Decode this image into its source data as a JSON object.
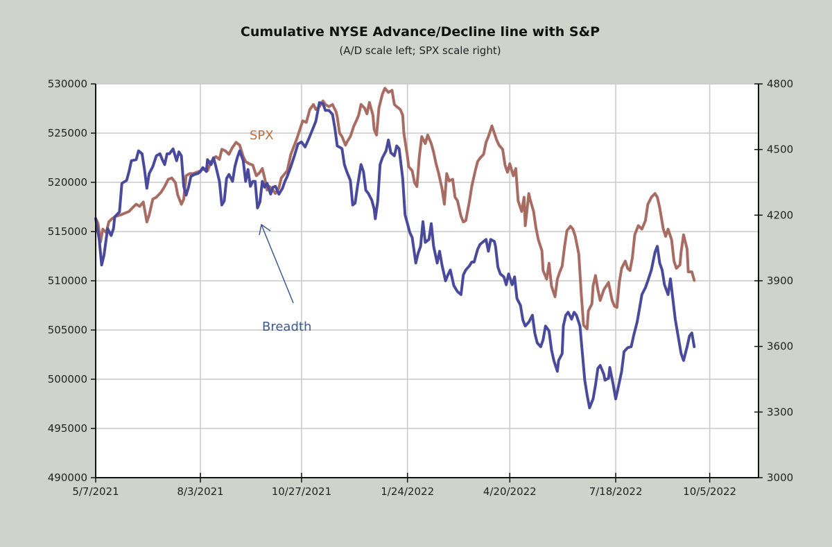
{
  "chart_data": {
    "type": "line",
    "title": "Cumulative NYSE Advance/Decline line with S&P",
    "subtitle": "(A/D scale left; SPX scale right)",
    "x_unit": "days since 5/7/2021",
    "x_start_date": "5/7/2021",
    "xlim": [
      0,
      557
    ],
    "x_ticks": [
      {
        "day": 0,
        "label": "5/7/2021"
      },
      {
        "day": 88,
        "label": "8/3/2021"
      },
      {
        "day": 173,
        "label": "10/27/2021"
      },
      {
        "day": 262,
        "label": "1/24/2022"
      },
      {
        "day": 348,
        "label": "4/20/2022"
      },
      {
        "day": 437,
        "label": "7/18/2022"
      },
      {
        "day": 516,
        "label": "10/5/2022"
      }
    ],
    "y_left": {
      "ylim": [
        490000,
        530000
      ],
      "ticks": [
        "530000",
        "525000",
        "520000",
        "515000",
        "510000",
        "505000",
        "500000",
        "495000",
        "490000"
      ],
      "tick_values": [
        530000,
        525000,
        520000,
        515000,
        510000,
        505000,
        500000,
        495000,
        490000
      ]
    },
    "y_right": {
      "ylim": [
        3000,
        4800
      ],
      "ticks": [
        "4800",
        "4500",
        "4200",
        "3900",
        "3600",
        "3300",
        "3000"
      ],
      "tick_values": [
        4800,
        4500,
        4200,
        3900,
        3600,
        3300,
        3000
      ]
    },
    "grid": true,
    "series": [
      {
        "name": "Breadth",
        "axis": "left",
        "color": "#4a4a9c",
        "x": [
          0,
          3,
          5,
          7,
          10,
          13,
          15,
          16,
          20,
          22,
          26,
          28,
          30,
          34,
          36,
          39,
          41,
          43,
          45,
          48,
          51,
          54,
          56,
          58,
          60,
          62,
          65,
          68,
          70,
          72,
          74,
          76,
          78,
          80,
          83,
          86,
          88,
          90,
          93,
          94,
          97,
          99,
          101,
          104,
          106,
          108,
          110,
          112,
          115,
          117,
          119,
          121,
          124,
          126,
          128,
          130,
          132,
          134,
          136,
          138,
          140,
          142,
          144,
          147,
          149,
          151,
          154,
          157,
          159,
          161,
          164,
          167,
          170,
          173,
          176,
          179,
          182,
          185,
          188,
          191,
          193,
          196,
          199,
          201,
          203,
          206,
          207,
          209,
          211,
          214,
          216,
          218,
          220,
          223,
          225,
          227,
          229,
          232,
          234,
          235,
          237,
          239,
          241,
          244,
          246,
          248,
          251,
          253,
          255,
          258,
          260,
          262,
          264,
          266,
          269,
          271,
          273,
          275,
          277,
          280,
          282,
          284,
          287,
          289,
          291,
          294,
          296,
          298,
          301,
          304,
          307,
          309,
          311,
          314,
          316,
          318,
          321,
          323,
          325,
          328,
          330,
          332,
          335,
          336,
          338,
          340,
          343,
          345,
          347,
          350,
          352,
          354,
          357,
          359,
          361,
          364,
          367,
          369,
          371,
          374,
          376,
          378,
          381,
          383,
          385,
          388,
          389,
          392,
          393,
          395,
          397,
          400,
          402,
          404,
          407,
          409,
          411,
          413,
          415,
          418,
          420,
          422,
          424,
          427,
          428,
          431,
          432,
          435,
          437,
          439,
          442,
          444,
          447,
          450,
          452,
          455,
          457,
          459,
          462,
          464,
          467,
          470,
          472,
          474,
          476,
          478,
          481,
          483,
          485,
          487,
          490,
          492,
          494,
          497,
          499,
          501,
          503
        ],
        "y": [
          516300,
          514200,
          511600,
          512600,
          515300,
          514600,
          515300,
          516500,
          517000,
          519900,
          520200,
          521100,
          522200,
          522300,
          523200,
          522900,
          521300,
          519400,
          520900,
          521600,
          522700,
          522900,
          522300,
          521800,
          522900,
          522900,
          523400,
          522200,
          523100,
          522700,
          519600,
          518700,
          519500,
          520600,
          520800,
          520900,
          521100,
          521500,
          521100,
          522300,
          521800,
          522500,
          521600,
          520100,
          517700,
          518100,
          520400,
          520800,
          520100,
          521600,
          522500,
          523200,
          522200,
          520100,
          521300,
          519600,
          520100,
          520100,
          517400,
          518000,
          520100,
          519500,
          519900,
          518800,
          519500,
          519600,
          518800,
          519400,
          520100,
          520600,
          521600,
          522700,
          523900,
          524100,
          523600,
          524400,
          525300,
          526200,
          528100,
          528000,
          527300,
          527300,
          526900,
          525500,
          523700,
          523500,
          523400,
          521800,
          521100,
          520200,
          517700,
          517900,
          519600,
          521800,
          521100,
          519200,
          518900,
          518200,
          517300,
          516300,
          518100,
          521800,
          522500,
          523200,
          524300,
          523000,
          522700,
          523700,
          523400,
          520400,
          516700,
          515800,
          514900,
          514400,
          511800,
          512800,
          513500,
          516000,
          513900,
          514200,
          515800,
          513500,
          511800,
          513000,
          511600,
          510000,
          510600,
          511100,
          509500,
          508900,
          508600,
          510600,
          511100,
          511500,
          511900,
          511900,
          513200,
          513700,
          513900,
          514200,
          513000,
          514200,
          514000,
          513500,
          511400,
          510700,
          510400,
          509600,
          510700,
          509600,
          510400,
          508200,
          507500,
          506000,
          505400,
          505800,
          506500,
          504700,
          503700,
          503300,
          504000,
          505400,
          504900,
          503000,
          501900,
          500800,
          501900,
          502600,
          505400,
          506500,
          506800,
          506100,
          506800,
          506500,
          505400,
          502600,
          499900,
          498400,
          497100,
          498000,
          499400,
          501100,
          501400,
          500500,
          499900,
          500100,
          501200,
          499400,
          498000,
          499100,
          500800,
          502800,
          503200,
          503300,
          504400,
          505800,
          507200,
          508600,
          509300,
          510000,
          511100,
          512900,
          513500,
          511800,
          511100,
          509600,
          508600,
          510200,
          508200,
          506100,
          504000,
          502600,
          501900,
          503300,
          504400,
          504700,
          503300
        ]
      },
      {
        "name": "SPX",
        "axis": "right",
        "color": "#a86c62",
        "x": [
          0,
          2,
          4,
          6,
          9,
          11,
          14,
          17,
          21,
          24,
          28,
          31,
          34,
          37,
          40,
          43,
          45,
          48,
          51,
          55,
          58,
          61,
          64,
          67,
          69,
          72,
          74,
          76,
          79,
          82,
          85,
          88,
          91,
          94,
          97,
          101,
          104,
          106,
          109,
          112,
          115,
          118,
          121,
          124,
          126,
          129,
          132,
          135,
          138,
          140,
          142,
          144,
          146,
          149,
          151,
          154,
          156,
          159,
          161,
          164,
          167,
          169,
          172,
          174,
          177,
          180,
          183,
          185,
          188,
          191,
          193,
          196,
          199,
          202,
          203,
          205,
          207,
          210,
          211,
          214,
          217,
          219,
          221,
          223,
          226,
          228,
          230,
          233,
          234,
          236,
          238,
          241,
          243,
          246,
          249,
          251,
          253,
          256,
          258,
          259,
          262,
          263,
          266,
          268,
          270,
          272,
          274,
          277,
          279,
          282,
          284,
          286,
          288,
          291,
          293,
          295,
          297,
          300,
          302,
          304,
          307,
          309,
          311,
          314,
          316,
          319,
          321,
          323,
          326,
          328,
          330,
          333,
          335,
          337,
          339,
          342,
          344,
          346,
          348,
          351,
          353,
          355,
          358,
          360,
          361,
          364,
          365,
          368,
          370,
          372,
          375,
          376,
          379,
          381,
          383,
          386,
          388,
          390,
          392,
          394,
          396,
          399,
          401,
          403,
          406,
          408,
          410,
          413,
          414,
          417,
          418,
          420,
          422,
          424,
          427,
          429,
          431,
          434,
          436,
          438,
          440,
          442,
          445,
          447,
          449,
          451,
          453,
          456,
          459,
          462,
          464,
          467,
          470,
          472,
          474,
          477,
          479,
          481,
          484,
          486,
          488,
          491,
          492,
          494,
          497,
          498,
          501,
          503
        ],
        "y": [
          4185,
          4162,
          4077,
          4136,
          4120,
          4169,
          4185,
          4195,
          4201,
          4208,
          4217,
          4234,
          4250,
          4240,
          4260,
          4169,
          4201,
          4273,
          4282,
          4305,
          4331,
          4364,
          4370,
          4348,
          4292,
          4250,
          4273,
          4380,
          4390,
          4390,
          4396,
          4403,
          4413,
          4403,
          4445,
          4468,
          4455,
          4501,
          4494,
          4478,
          4510,
          4533,
          4520,
          4468,
          4445,
          4435,
          4429,
          4380,
          4396,
          4413,
          4370,
          4315,
          4331,
          4315,
          4299,
          4325,
          4370,
          4390,
          4403,
          4478,
          4520,
          4549,
          4598,
          4631,
          4624,
          4683,
          4706,
          4683,
          4696,
          4722,
          4706,
          4696,
          4706,
          4673,
          4650,
          4575,
          4559,
          4520,
          4533,
          4559,
          4608,
          4631,
          4657,
          4706,
          4689,
          4663,
          4715,
          4657,
          4592,
          4566,
          4689,
          4754,
          4780,
          4761,
          4771,
          4706,
          4696,
          4683,
          4657,
          4575,
          4468,
          4422,
          4403,
          4348,
          4331,
          4468,
          4559,
          4527,
          4566,
          4527,
          4488,
          4435,
          4396,
          4322,
          4250,
          4390,
          4357,
          4364,
          4282,
          4266,
          4195,
          4169,
          4175,
          4260,
          4331,
          4403,
          4445,
          4461,
          4478,
          4533,
          4559,
          4608,
          4575,
          4543,
          4520,
          4501,
          4429,
          4396,
          4435,
          4380,
          4413,
          4266,
          4217,
          4282,
          4152,
          4299,
          4273,
          4217,
          4142,
          4087,
          4038,
          3947,
          3908,
          3980,
          3876,
          3827,
          3908,
          3941,
          3967,
          4055,
          4129,
          4149,
          4136,
          4103,
          4022,
          3843,
          3697,
          3680,
          3762,
          3794,
          3876,
          3924,
          3859,
          3810,
          3859,
          3876,
          3892,
          3810,
          3784,
          3778,
          3892,
          3957,
          3990,
          3957,
          3947,
          4006,
          4110,
          4152,
          4136,
          4175,
          4250,
          4282,
          4299,
          4282,
          4234,
          4136,
          4103,
          4136,
          4087,
          3990,
          3957,
          3973,
          4032,
          4110,
          4045,
          3941,
          3941,
          3902
        ]
      }
    ],
    "annotations": [
      {
        "text": "SPX",
        "color": "#b8703e"
      },
      {
        "text": "Breadth",
        "color": "#3c5a8c",
        "arrow": true
      }
    ]
  }
}
